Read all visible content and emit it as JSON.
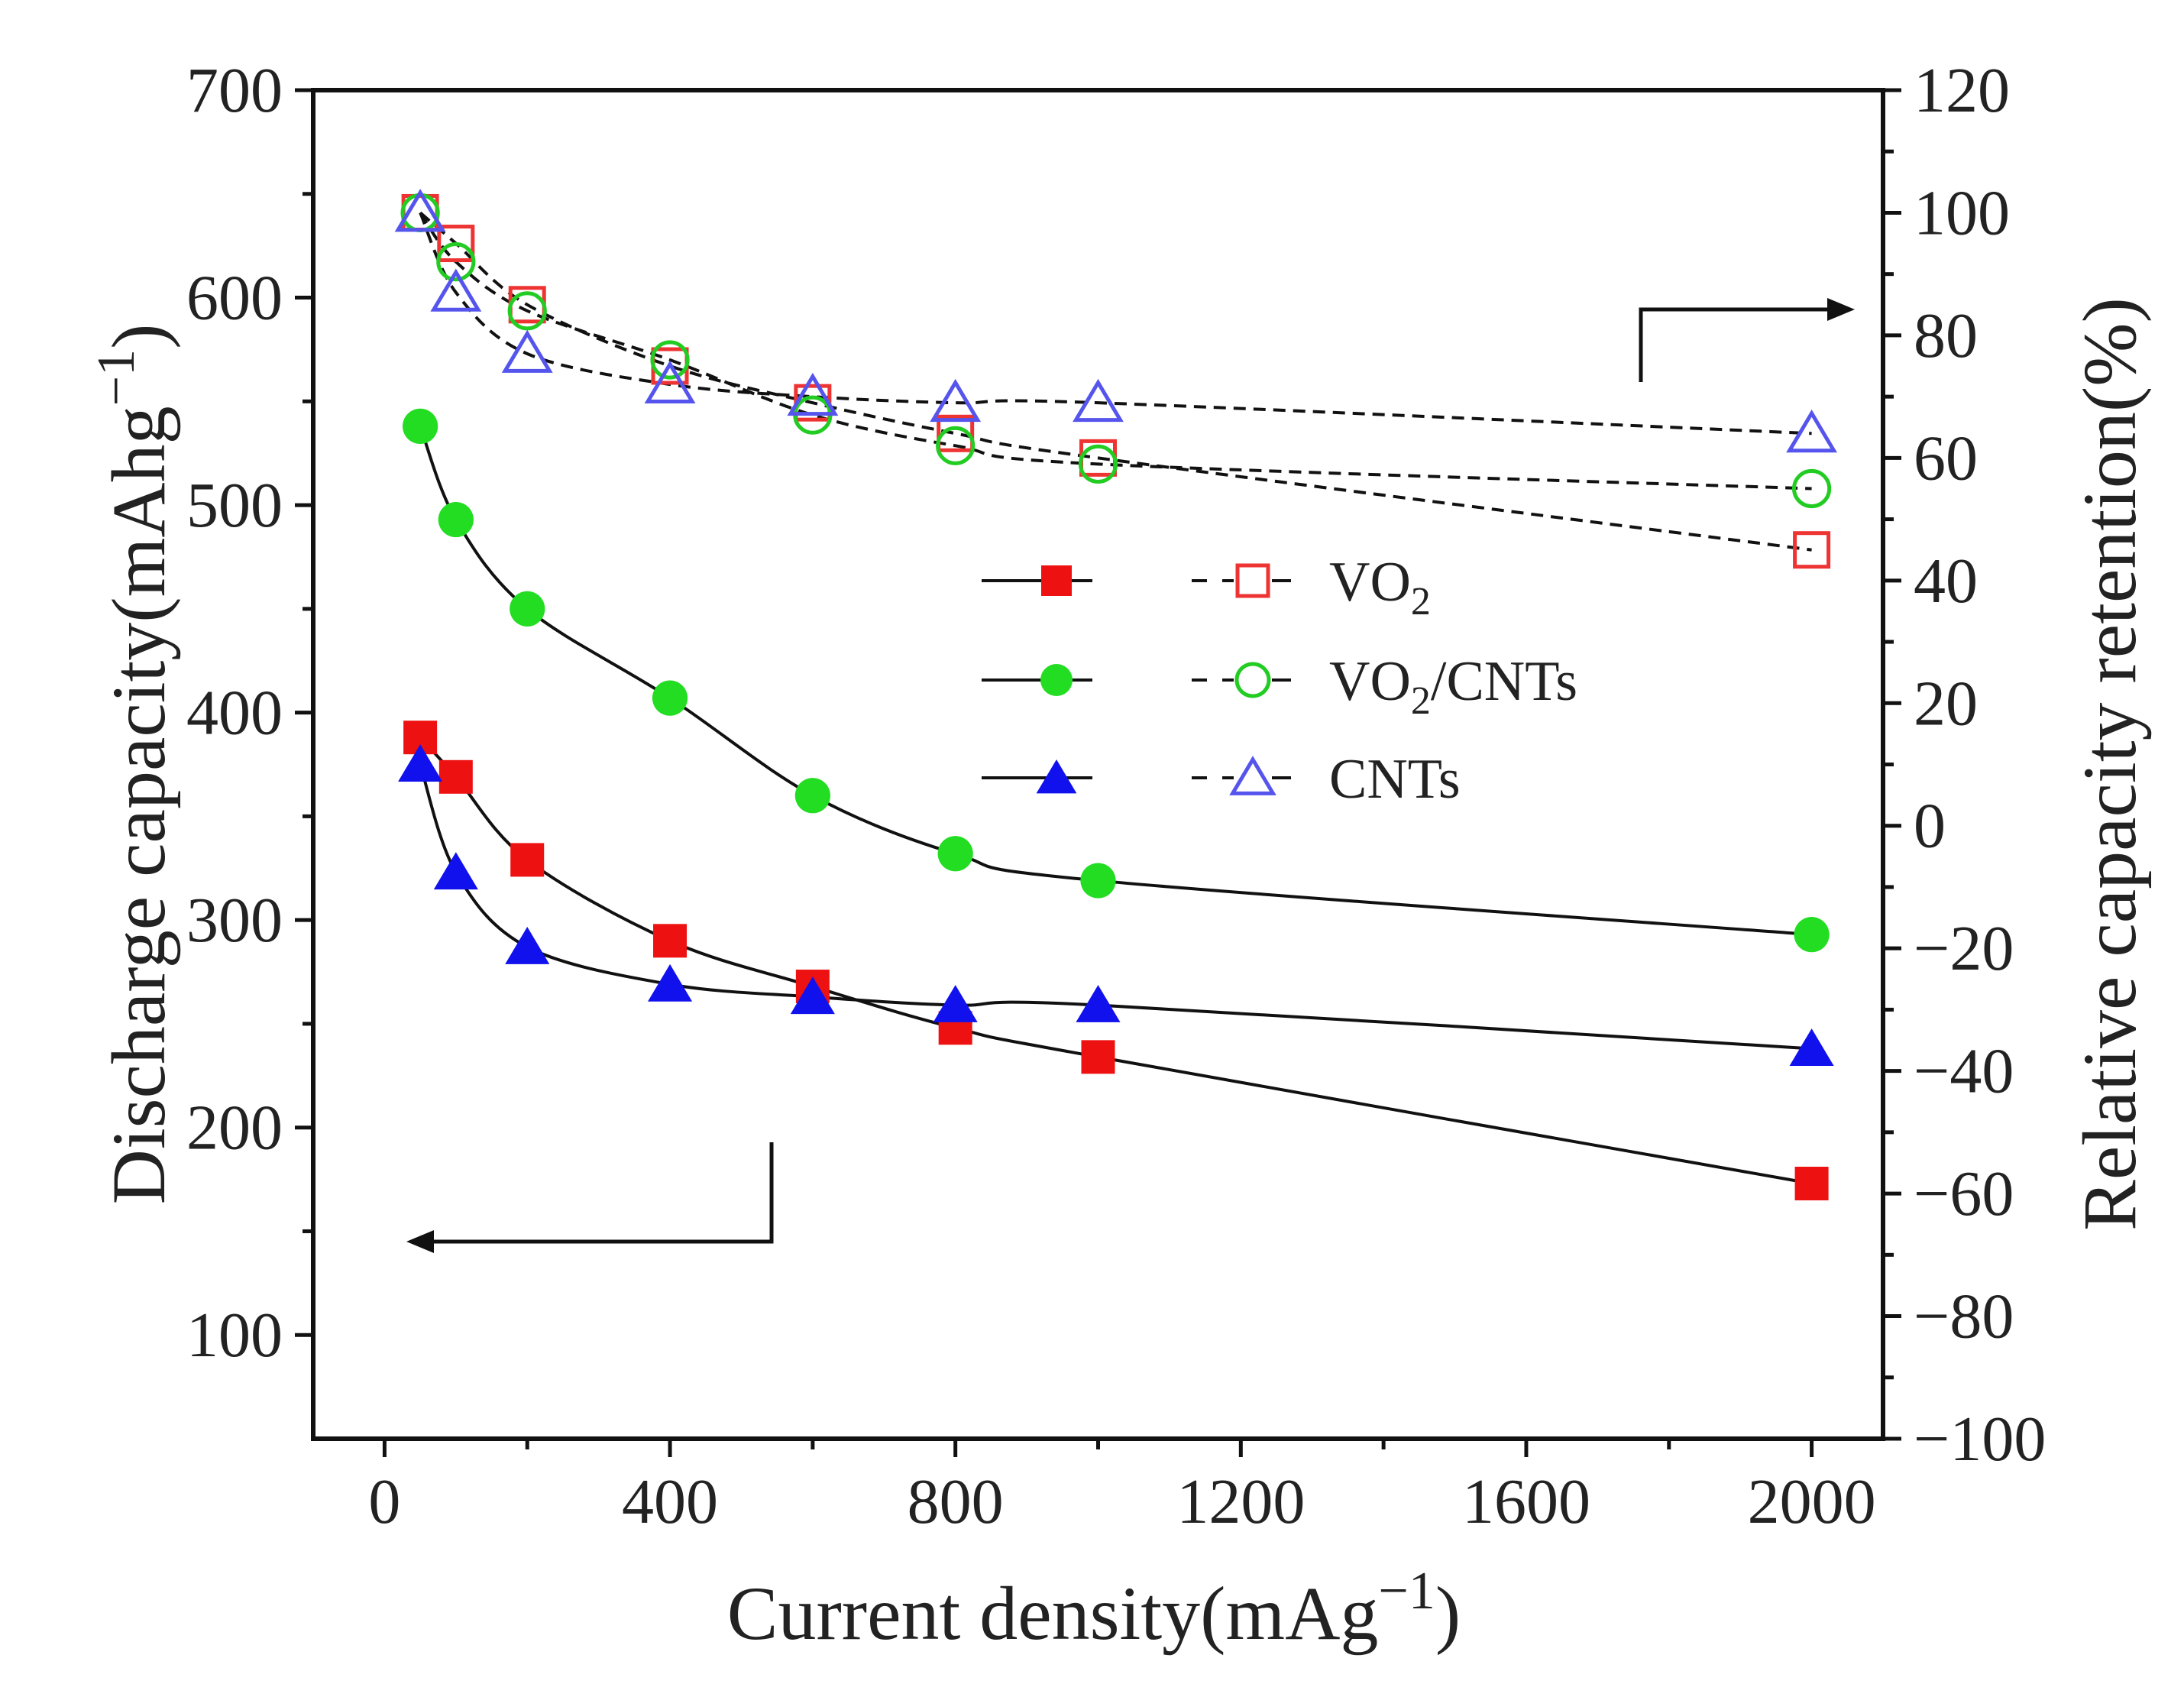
{
  "chart_data": {
    "type": "scatter",
    "xlabel": "Current density(mAg",
    "xlabel_sup": "−1",
    "xlabel_end": ")",
    "ylabel_left": "Discharge capacity(mAhg",
    "ylabel_left_sup": "−1",
    "ylabel_left_end": ")",
    "ylabel_right": "Relative capacity retention(%)",
    "xlim": [
      -100,
      2100
    ],
    "ylim_left": [
      50,
      700
    ],
    "ylim_right": [
      -100,
      120
    ],
    "x_ticks": [
      0,
      400,
      800,
      1200,
      1600,
      2000
    ],
    "y_left_ticks": [
      100,
      200,
      300,
      400,
      500,
      600,
      700
    ],
    "y_right_ticks": [
      -100,
      -80,
      -60,
      -40,
      -20,
      0,
      20,
      40,
      60,
      80,
      100,
      120
    ],
    "x_tick_labels": [
      "0",
      "400",
      "800",
      "1200",
      "1600",
      "2000"
    ],
    "y_left_tick_labels": [
      "100",
      "200",
      "300",
      "400",
      "500",
      "600",
      "700"
    ],
    "y_right_tick_labels": [
      "−100",
      "−80",
      "−60",
      "−40",
      "−20",
      "0",
      "20",
      "40",
      "60",
      "80",
      "100",
      "120"
    ],
    "x": [
      50,
      100,
      200,
      400,
      600,
      800,
      1000,
      2000
    ],
    "legend": {
      "position": "center-right",
      "entries": [
        "VO",
        "VO",
        "CNTs"
      ],
      "subscripts": [
        "2",
        "2",
        ""
      ],
      "suffixes": [
        "",
        "/CNTs",
        ""
      ]
    },
    "series": [
      {
        "name": "VO2",
        "axis": "left",
        "style": "solid",
        "marker": "square",
        "filled": true,
        "color": "#ee1111",
        "values": [
          388,
          369,
          329,
          290,
          268,
          248,
          234,
          173
        ]
      },
      {
        "name": "VO2/CNTs",
        "axis": "left",
        "style": "solid",
        "marker": "circle",
        "filled": true,
        "color": "#22dd22",
        "values": [
          538,
          493,
          450,
          407,
          360,
          332,
          319,
          293
        ]
      },
      {
        "name": "CNTs",
        "axis": "left",
        "style": "solid",
        "marker": "triangle",
        "filled": true,
        "color": "#1111ee",
        "values": [
          375,
          323,
          287,
          269,
          263,
          259,
          259,
          238
        ]
      },
      {
        "name": "VO2 retention",
        "axis": "right",
        "style": "dashed",
        "marker": "square",
        "filled": false,
        "color": "#ee3333",
        "values": [
          100,
          95,
          85,
          75,
          69,
          64,
          60,
          45
        ]
      },
      {
        "name": "VO2/CNTs retention",
        "axis": "right",
        "style": "dashed",
        "marker": "circle",
        "filled": false,
        "color": "#22cc22",
        "values": [
          100,
          92,
          84,
          76,
          67,
          62,
          59,
          55
        ]
      },
      {
        "name": "CNTs retention",
        "axis": "right",
        "style": "dashed",
        "marker": "triangle",
        "filled": false,
        "color": "#5555ee",
        "values": [
          100,
          87,
          77,
          72,
          70,
          69,
          69,
          64
        ]
      }
    ],
    "annotations": [
      {
        "type": "arrow",
        "points_to": "right-axis"
      },
      {
        "type": "arrow",
        "points_to": "left-axis"
      }
    ]
  }
}
